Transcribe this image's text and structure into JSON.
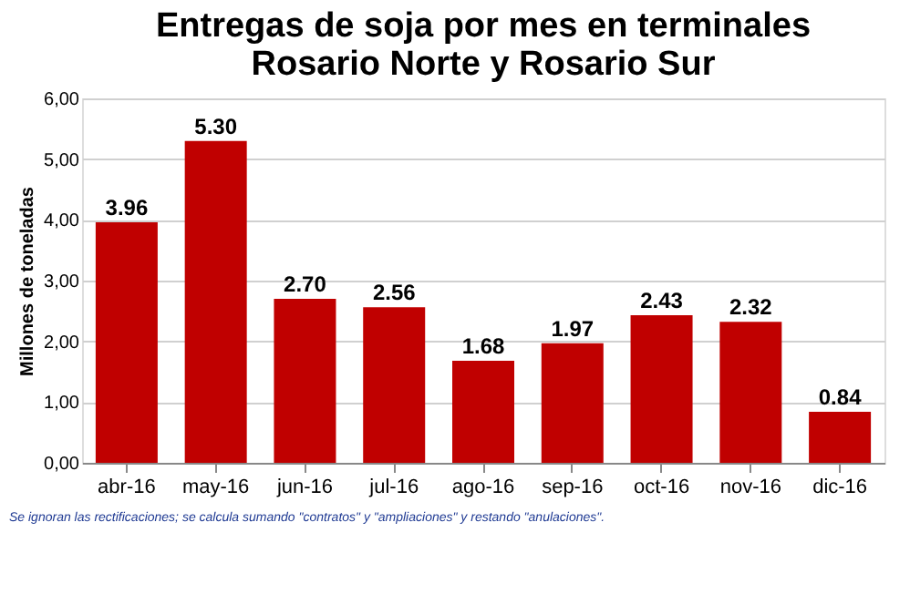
{
  "chart_data": {
    "type": "bar",
    "title": [
      "Entregas de soja por mes en terminales",
      "Rosario Norte y Rosario Sur"
    ],
    "ylabel": "Millones de toneladas",
    "categories": [
      "abr-16",
      "may-16",
      "jun-16",
      "jul-16",
      "ago-16",
      "sep-16",
      "oct-16",
      "nov-16",
      "dic-16"
    ],
    "values": [
      3.96,
      5.3,
      2.7,
      2.56,
      1.68,
      1.97,
      2.43,
      2.32,
      0.84
    ],
    "value_labels": [
      "3.96",
      "5.30",
      "2.70",
      "2.56",
      "1.68",
      "1.97",
      "2.43",
      "2.32",
      "0.84"
    ],
    "color": "#c00000",
    "ylim": [
      0,
      6
    ],
    "yticks": [
      {
        "value": 0,
        "label": "0,00"
      },
      {
        "value": 1,
        "label": "1,00"
      },
      {
        "value": 2,
        "label": "2,00"
      },
      {
        "value": 3,
        "label": "3,00"
      },
      {
        "value": 4,
        "label": "4,00"
      },
      {
        "value": 5,
        "label": "5,00"
      },
      {
        "value": 6,
        "label": "6,00"
      }
    ],
    "grid": "y",
    "annotations": [
      "Se ignoran las rectificaciones; se calcula sumando \"contratos\" y \"ampliaciones\" y restando \"anulaciones\"."
    ]
  }
}
